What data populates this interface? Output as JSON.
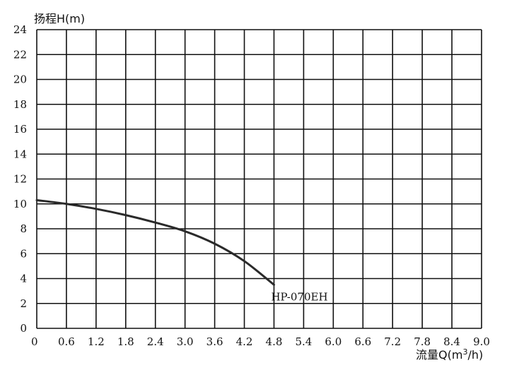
{
  "chart_data": {
    "type": "line",
    "ylabel": "扬程H(m)",
    "xlabel_prefix": "流量Q(m",
    "xlabel_sup": "3",
    "xlabel_suffix": "/h)",
    "xlim": [
      0,
      9.0
    ],
    "ylim": [
      0,
      24
    ],
    "x_ticks": [
      "0",
      "0.6",
      "1.2",
      "1.8",
      "2.4",
      "3.0",
      "3.6",
      "4.2",
      "4.8",
      "5.4",
      "6.0",
      "6.6",
      "7.2",
      "7.8",
      "8.4",
      "9.0"
    ],
    "y_ticks": [
      "0",
      "2",
      "4",
      "6",
      "8",
      "10",
      "12",
      "14",
      "16",
      "18",
      "20",
      "22",
      "24"
    ],
    "grid": true,
    "series": [
      {
        "name": "HP-070EH",
        "x": [
          0,
          0.6,
          1.2,
          1.8,
          2.4,
          3.0,
          3.6,
          4.2,
          4.8
        ],
        "y": [
          10.3,
          10.0,
          9.6,
          9.1,
          8.5,
          7.8,
          6.8,
          5.4,
          3.5
        ]
      }
    ]
  }
}
